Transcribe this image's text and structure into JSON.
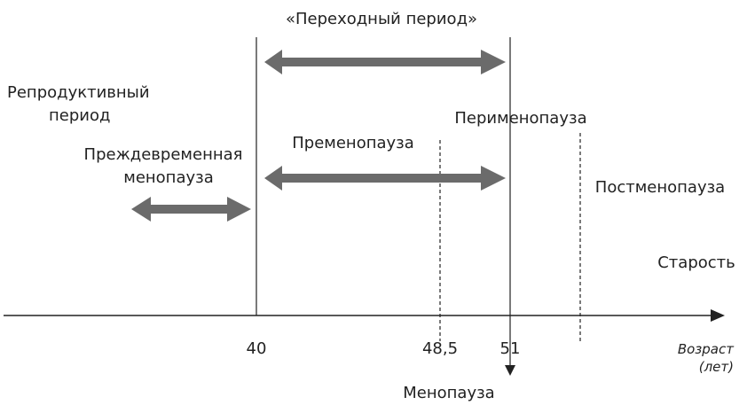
{
  "labels": {
    "transition_period": "«Переходный период»",
    "reproductive_line1": "Репродуктивный",
    "reproductive_line2": "период",
    "perimenopause": "Перименопауза",
    "premenopause": "Пременопауза",
    "premature_line1": "Преждевременная",
    "premature_line2": "менопауза",
    "postmenopause": "Постменопауза",
    "old_age": "Старость",
    "menopause": "Менопауза"
  },
  "axis": {
    "ticks": [
      "40",
      "48,5",
      "51"
    ],
    "label_line1": "Возраст",
    "label_line2": "(лет)"
  },
  "colors": {
    "arrow": "#6b6b6b",
    "line": "#222222"
  }
}
